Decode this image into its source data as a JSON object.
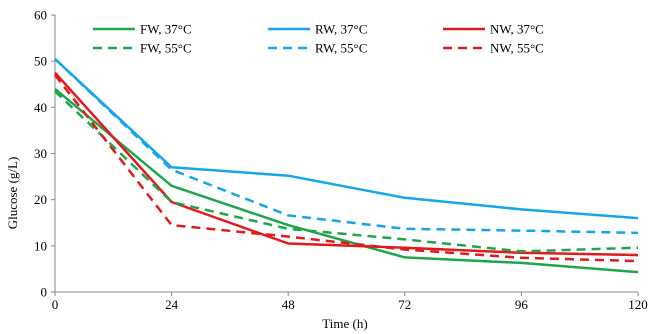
{
  "chart_data": {
    "type": "line",
    "title": "",
    "xlabel": "Time  (h)",
    "ylabel": "Glucose (g/L)",
    "xlim": [
      0,
      120
    ],
    "ylim": [
      0,
      60
    ],
    "x_ticks": [
      "0",
      "24",
      "48",
      "72",
      "96",
      "120"
    ],
    "y_ticks": [
      "0",
      "10",
      "20",
      "30",
      "40",
      "50",
      "60"
    ],
    "grid": false,
    "legend_position": "top",
    "x": [
      0,
      24,
      48,
      72,
      96,
      120
    ],
    "series": [
      {
        "name": "FW, 37°C",
        "color": "#1ea64b",
        "dash": "solid",
        "values": [
          44.0,
          23.0,
          14.5,
          7.5,
          6.3,
          4.3
        ]
      },
      {
        "name": "RW, 37°C",
        "color": "#16a5e8",
        "dash": "solid",
        "values": [
          50.5,
          27.0,
          25.2,
          20.4,
          17.9,
          16.0
        ]
      },
      {
        "name": "NW, 37°C",
        "color": "#e31a1c",
        "dash": "solid",
        "values": [
          47.5,
          19.5,
          10.5,
          9.6,
          8.5,
          8.0
        ]
      },
      {
        "name": "FW, 55°C",
        "color": "#1ea64b",
        "dash": "dashed",
        "values": [
          43.5,
          19.5,
          13.7,
          11.4,
          8.8,
          9.6
        ]
      },
      {
        "name": "RW, 55°C",
        "color": "#16a5e8",
        "dash": "dashed",
        "values": [
          50.5,
          26.5,
          16.6,
          13.7,
          13.3,
          12.8
        ]
      },
      {
        "name": "NW, 55°C",
        "color": "#e31a1c",
        "dash": "dashed",
        "values": [
          47.0,
          14.5,
          12.0,
          9.2,
          7.4,
          6.7
        ]
      }
    ]
  }
}
